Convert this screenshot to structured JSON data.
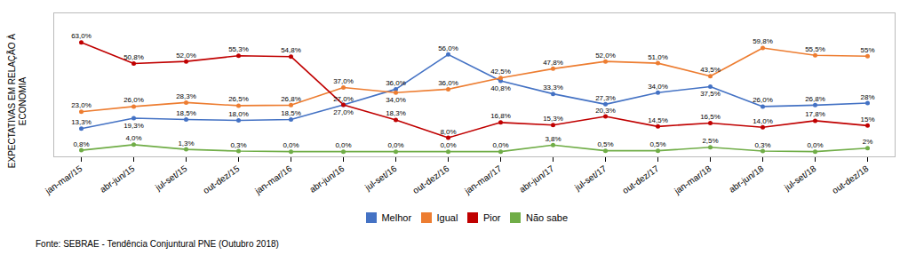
{
  "chart_data": {
    "type": "line",
    "ylabel": "EXPECTATIVAS EM RELAÇÃO À\nECONOMIA",
    "caption": "Fonte: SEBRAE - Tendência Conjuntural PNE (Outubro 2018)",
    "categories": [
      "jan-mar/15",
      "abr-jun/15",
      "jul-set/15",
      "out-dez/15",
      "jan-mar/16",
      "abr-jun/16",
      "jul-set/16",
      "out-dez/16",
      "jan-mar/17",
      "abr-jun/17",
      "jul-set/17",
      "out-dez/17",
      "jan-mar/18",
      "abr-jun/18",
      "jul-set/18",
      "out-dez/18"
    ],
    "series": [
      {
        "name": "Melhor",
        "color": "#4472C4",
        "marker": "circle",
        "values": [
          13.3,
          19.3,
          18.5,
          18.0,
          18.5,
          27.0,
          36.0,
          56.0,
          40.8,
          33.3,
          27.3,
          34.0,
          37.5,
          26.0,
          26.8,
          28.0
        ],
        "value_labels": [
          "13,3%",
          "19,3%",
          "18,5%",
          "18,0%",
          "18,5%",
          "27,0%",
          "36,0%",
          "56,0%",
          "40,8%",
          "33,3%",
          "27,3%",
          "34,0%",
          "37,5%",
          "26,0%",
          "26,8%",
          "28%"
        ]
      },
      {
        "name": "Igual",
        "color": "#ED7D31",
        "marker": "circle",
        "values": [
          23.0,
          26.0,
          28.3,
          26.5,
          26.8,
          37.0,
          34.0,
          36.0,
          42.5,
          47.8,
          52.0,
          51.0,
          43.5,
          59.8,
          55.5,
          55.0
        ],
        "value_labels": [
          "23,0%",
          "26,0%",
          "28,3%",
          "26,5%",
          "26,8%",
          "37,0%",
          "34,0%",
          "36,0%",
          "42,5%",
          "47,8%",
          "52,0%",
          "51,0%",
          "43,5%",
          "59,8%",
          "55,5%",
          "55%"
        ]
      },
      {
        "name": "Pior",
        "color": "#C00000",
        "marker": "circle",
        "values": [
          63.0,
          50.8,
          52.0,
          55.3,
          54.8,
          27.0,
          18.3,
          8.0,
          16.8,
          15.3,
          20.3,
          14.5,
          16.5,
          14.0,
          17.8,
          15.0
        ],
        "value_labels": [
          "63,0%",
          "50,8%",
          "52,0%",
          "55,3%",
          "54,8%",
          "27,0%",
          "18,3%",
          "8,0%",
          "16,8%",
          "15,3%",
          "20,3%",
          "14,5%",
          "16,5%",
          "14,0%",
          "17,8%",
          "15%"
        ]
      },
      {
        "name": "Não sabe",
        "color": "#70AD47",
        "marker": "circle",
        "values": [
          0.8,
          4.0,
          1.3,
          0.3,
          0.0,
          0.0,
          0.0,
          0.0,
          0.0,
          3.8,
          0.5,
          0.5,
          2.5,
          0.3,
          0.0,
          2.0
        ],
        "value_labels": [
          "0,8%",
          "4,0%",
          "1,3%",
          "0,3%",
          "0,0%",
          "0,0%",
          "0,0%",
          "0,0%",
          "0,0%",
          "3,8%",
          "0,5%",
          "0,5%",
          "2,5%",
          "0,3%",
          "0,0%",
          "2%"
        ]
      }
    ],
    "ylim": [
      -3,
      80
    ],
    "yticks": [],
    "tick_labels": "x",
    "grid": false,
    "data_labels": true,
    "legend": "bottom"
  }
}
